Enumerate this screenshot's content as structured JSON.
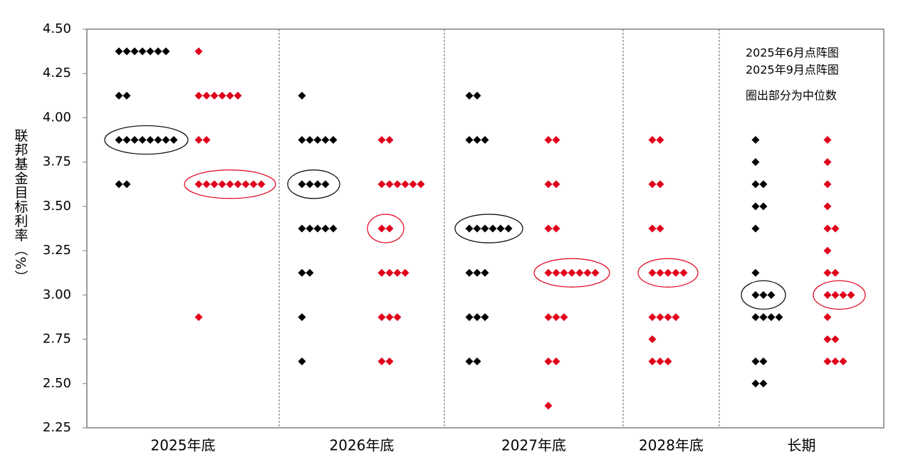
{
  "chart_data": {
    "type": "dot",
    "y_label": "联邦基金目标利率（%）",
    "categories": [
      "2025年底",
      "2026年底",
      "2027年底",
      "2028年底",
      "长期"
    ],
    "ylim": [
      2.25,
      4.5
    ],
    "yticks": [
      {
        "value": 2.25,
        "label": "2.25"
      },
      {
        "value": 2.5,
        "label": "2.50"
      },
      {
        "value": 2.75,
        "label": "2.75"
      },
      {
        "value": 3,
        "label": "3.00"
      },
      {
        "value": 3.25,
        "label": "3.25"
      },
      {
        "value": 3.5,
        "label": "3.50"
      },
      {
        "value": 3.75,
        "label": "3.75"
      },
      {
        "value": 4,
        "label": "4.00"
      },
      {
        "value": 4.25,
        "label": "4.25"
      },
      {
        "value": 4.5,
        "label": "4.50"
      }
    ],
    "annotation": "圈出部分为中位数",
    "series": [
      {
        "name": "2025年6月点阵图",
        "color": "#000000",
        "values": [
          [
            [
              4.375,
              7
            ],
            [
              4.125,
              2
            ],
            [
              3.875,
              8
            ],
            [
              3.625,
              2
            ]
          ],
          [
            [
              4.125,
              1
            ],
            [
              3.875,
              5
            ],
            [
              3.625,
              4
            ],
            [
              3.375,
              5
            ],
            [
              3.125,
              2
            ],
            [
              2.875,
              1
            ],
            [
              2.625,
              1
            ]
          ],
          [
            [
              4.125,
              2
            ],
            [
              3.875,
              3
            ],
            [
              3.375,
              6
            ],
            [
              3.125,
              3
            ],
            [
              2.875,
              3
            ],
            [
              2.625,
              2
            ]
          ],
          [],
          [
            [
              3.875,
              1
            ],
            [
              3.75,
              1
            ],
            [
              3.625,
              2
            ],
            [
              3.5,
              2
            ],
            [
              3.375,
              1
            ],
            [
              3.125,
              1
            ],
            [
              3.0,
              3
            ],
            [
              2.875,
              4
            ],
            [
              2.625,
              2
            ],
            [
              2.5,
              2
            ]
          ]
        ],
        "medians": [
          3.875,
          3.625,
          3.375,
          null,
          3.0
        ]
      },
      {
        "name": "2025年9月点阵图",
        "color": "#e0001b",
        "values": [
          [
            [
              4.375,
              1
            ],
            [
              4.125,
              6
            ],
            [
              3.875,
              2
            ],
            [
              3.625,
              9
            ],
            [
              2.875,
              1
            ]
          ],
          [
            [
              3.875,
              2
            ],
            [
              3.625,
              6
            ],
            [
              3.375,
              2
            ],
            [
              3.125,
              4
            ],
            [
              2.875,
              3
            ],
            [
              2.625,
              2
            ]
          ],
          [
            [
              3.875,
              2
            ],
            [
              3.625,
              2
            ],
            [
              3.375,
              2
            ],
            [
              3.125,
              7
            ],
            [
              2.875,
              3
            ],
            [
              2.625,
              2
            ],
            [
              2.375,
              1
            ]
          ],
          [
            [
              3.875,
              2
            ],
            [
              3.625,
              2
            ],
            [
              3.375,
              2
            ],
            [
              3.125,
              5
            ],
            [
              2.875,
              4
            ],
            [
              2.75,
              1
            ],
            [
              2.625,
              3
            ]
          ],
          [
            [
              3.875,
              1
            ],
            [
              3.75,
              1
            ],
            [
              3.625,
              1
            ],
            [
              3.5,
              1
            ],
            [
              3.375,
              2
            ],
            [
              3.25,
              1
            ],
            [
              3.125,
              2
            ],
            [
              3.0,
              4
            ],
            [
              2.875,
              1
            ],
            [
              2.75,
              2
            ],
            [
              2.625,
              3
            ]
          ]
        ],
        "medians": [
          3.625,
          3.375,
          3.125,
          3.125,
          3.0
        ]
      }
    ]
  }
}
